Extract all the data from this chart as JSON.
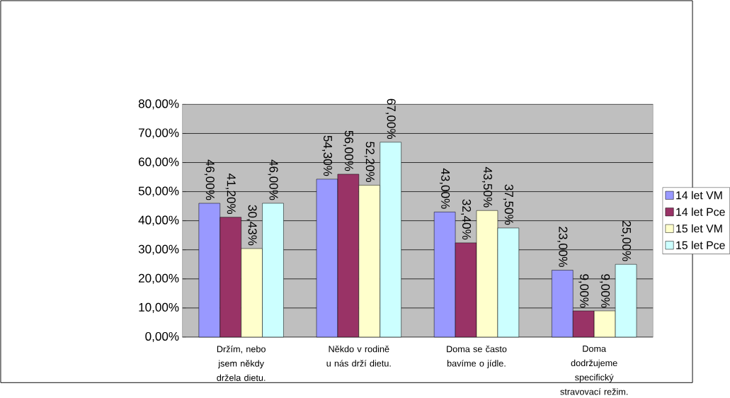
{
  "chart_data": {
    "type": "bar",
    "categories": [
      "Držím, nebo jsem někdy držela dietu.",
      "Někdo v rodině u nás drží dietu.",
      "Doma se často bavíme o jídle.",
      "Doma dodržujeme specifický stravovací režim."
    ],
    "series": [
      {
        "name": "14 let VM",
        "color": "#9999ff",
        "values": [
          46.0,
          54.3,
          43.0,
          23.0
        ],
        "value_labels": [
          "46,00%",
          "54,30%",
          "43,00%",
          "23,00%"
        ]
      },
      {
        "name": "14 let Pce",
        "color": "#993366",
        "values": [
          41.2,
          56.0,
          32.4,
          9.0
        ],
        "value_labels": [
          "41,20%",
          "56,00%",
          "32,40%",
          "9,00%"
        ]
      },
      {
        "name": "15 let VM",
        "color": "#ffffcc",
        "values": [
          30.43,
          52.2,
          43.5,
          9.0
        ],
        "value_labels": [
          "30,43%",
          "52,20%",
          "43,50%",
          "9,00%"
        ]
      },
      {
        "name": "15 let Pce",
        "color": "#ccffff",
        "values": [
          46.0,
          67.0,
          37.5,
          25.0
        ],
        "value_labels": [
          "46,00%",
          "67,00%",
          "37,50%",
          "25,00%"
        ]
      }
    ],
    "ylim": [
      0,
      80
    ],
    "yticks": [
      {
        "value": 0,
        "label": "0,00%"
      },
      {
        "value": 10,
        "label": "10,00%"
      },
      {
        "value": 20,
        "label": "20,00%"
      },
      {
        "value": 30,
        "label": "30,00%"
      },
      {
        "value": 40,
        "label": "40,00%"
      },
      {
        "value": 50,
        "label": "50,00%"
      },
      {
        "value": 60,
        "label": "60,00%"
      },
      {
        "value": 70,
        "label": "70,00%"
      },
      {
        "value": 80,
        "label": "80,00%"
      }
    ],
    "grid": "y",
    "legend": "right"
  }
}
